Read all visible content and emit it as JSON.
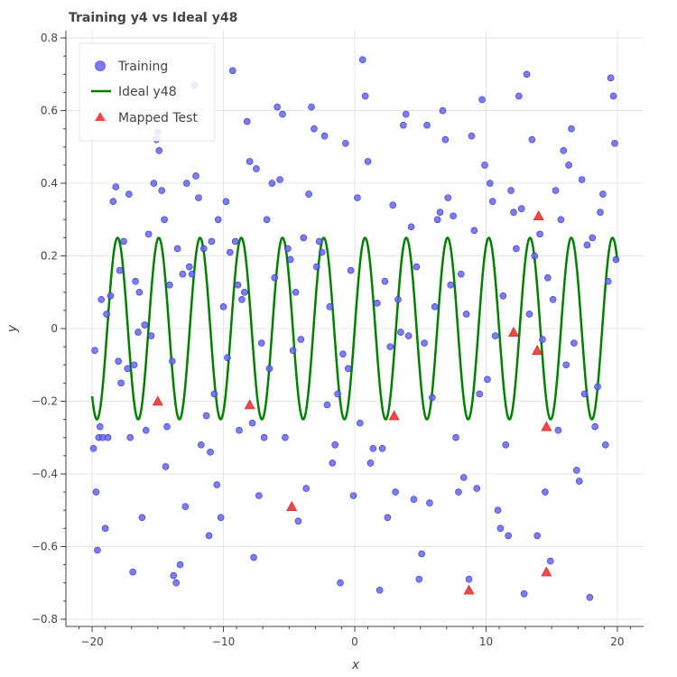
{
  "chart_data": {
    "type": "scatter",
    "title": "Training y4 vs Ideal y48",
    "xlabel": "x",
    "ylabel": "y",
    "xlim": [
      -22,
      22
    ],
    "ylim": [
      -0.82,
      0.82
    ],
    "x_ticks": [
      -20,
      -10,
      0,
      10,
      20
    ],
    "x_tick_labels": [
      "−20",
      "−10",
      "0",
      "10",
      "20"
    ],
    "y_ticks": [
      -0.8,
      -0.6,
      -0.4,
      -0.2,
      0,
      0.2,
      0.4,
      0.6,
      0.8
    ],
    "y_tick_labels": [
      "−0.8",
      "−0.6",
      "−0.4",
      "−0.2",
      "0",
      "0.2",
      "0.4",
      "0.6",
      "0.8"
    ],
    "grid": true,
    "legend_position": "top-left",
    "colors": {
      "training": "#6666ee",
      "ideal": "#008000",
      "test": "#ee3333"
    },
    "series": [
      {
        "name": "Training",
        "type": "scatter",
        "points": [
          [
            -19.9,
            -0.33
          ],
          [
            -19.8,
            -0.06
          ],
          [
            -19.7,
            -0.45
          ],
          [
            -19.6,
            -0.61
          ],
          [
            -19.5,
            -0.3
          ],
          [
            -19.4,
            -0.27
          ],
          [
            -19.3,
            0.08
          ],
          [
            -19.2,
            -0.3
          ],
          [
            -19.0,
            -0.55
          ],
          [
            -18.9,
            0.04
          ],
          [
            -18.8,
            -0.3
          ],
          [
            -18.6,
            0.09
          ],
          [
            -18.4,
            0.35
          ],
          [
            -18.2,
            0.39
          ],
          [
            -18.0,
            -0.09
          ],
          [
            -17.9,
            0.16
          ],
          [
            -17.8,
            -0.15
          ],
          [
            -17.6,
            0.24
          ],
          [
            -17.3,
            -0.11
          ],
          [
            -17.2,
            0.37
          ],
          [
            -17.1,
            -0.3
          ],
          [
            -16.9,
            -0.67
          ],
          [
            -16.8,
            -0.1
          ],
          [
            -16.7,
            0.13
          ],
          [
            -16.5,
            -0.01
          ],
          [
            -16.4,
            0.1
          ],
          [
            -16.2,
            -0.52
          ],
          [
            -16.0,
            0.01
          ],
          [
            -15.9,
            -0.28
          ],
          [
            -15.7,
            0.26
          ],
          [
            -15.5,
            -0.02
          ],
          [
            -15.3,
            0.4
          ],
          [
            -15.1,
            0.52
          ],
          [
            -15.0,
            0.54
          ],
          [
            -14.9,
            0.49
          ],
          [
            -14.7,
            0.38
          ],
          [
            -14.5,
            0.3
          ],
          [
            -14.4,
            -0.38
          ],
          [
            -14.3,
            -0.27
          ],
          [
            -14.1,
            0.12
          ],
          [
            -13.9,
            -0.09
          ],
          [
            -13.8,
            -0.68
          ],
          [
            -13.6,
            -0.7
          ],
          [
            -13.5,
            0.22
          ],
          [
            -13.3,
            -0.65
          ],
          [
            -13.1,
            0.15
          ],
          [
            -12.9,
            -0.49
          ],
          [
            -12.8,
            0.4
          ],
          [
            -12.6,
            0.17
          ],
          [
            -12.4,
            0.15
          ],
          [
            -12.2,
            0.67
          ],
          [
            -12.1,
            0.42
          ],
          [
            -11.9,
            0.36
          ],
          [
            -11.7,
            -0.32
          ],
          [
            -11.5,
            0.22
          ],
          [
            -11.3,
            -0.24
          ],
          [
            -11.1,
            -0.57
          ],
          [
            -11.0,
            -0.34
          ],
          [
            -10.9,
            0.24
          ],
          [
            -10.7,
            -0.18
          ],
          [
            -10.5,
            -0.43
          ],
          [
            -10.4,
            0.3
          ],
          [
            -10.2,
            -0.52
          ],
          [
            -10.0,
            0.06
          ],
          [
            -9.8,
            0.35
          ],
          [
            -9.7,
            -0.08
          ],
          [
            -9.5,
            0.21
          ],
          [
            -9.3,
            0.71
          ],
          [
            -9.1,
            0.24
          ],
          [
            -8.9,
            0.12
          ],
          [
            -8.8,
            -0.28
          ],
          [
            -8.6,
            0.08
          ],
          [
            -8.4,
            0.1
          ],
          [
            -8.2,
            0.57
          ],
          [
            -8.0,
            0.46
          ],
          [
            -7.8,
            -0.26
          ],
          [
            -7.7,
            -0.63
          ],
          [
            -7.5,
            0.44
          ],
          [
            -7.3,
            -0.46
          ],
          [
            -7.1,
            -0.04
          ],
          [
            -6.9,
            -0.3
          ],
          [
            -6.7,
            0.3
          ],
          [
            -6.5,
            -0.11
          ],
          [
            -6.3,
            0.4
          ],
          [
            -6.1,
            0.14
          ],
          [
            -5.9,
            0.61
          ],
          [
            -5.7,
            0.41
          ],
          [
            -5.5,
            0.59
          ],
          [
            -5.3,
            -0.3
          ],
          [
            -5.1,
            0.22
          ],
          [
            -4.9,
            0.19
          ],
          [
            -4.7,
            -0.06
          ],
          [
            -4.5,
            0.1
          ],
          [
            -4.3,
            -0.53
          ],
          [
            -4.1,
            -0.03
          ],
          [
            -3.9,
            0.25
          ],
          [
            -3.7,
            -0.44
          ],
          [
            -3.5,
            0.37
          ],
          [
            -3.3,
            0.61
          ],
          [
            -3.1,
            0.55
          ],
          [
            -2.9,
            0.17
          ],
          [
            -2.7,
            0.24
          ],
          [
            -2.5,
            0.21
          ],
          [
            -2.3,
            0.53
          ],
          [
            -2.1,
            -0.21
          ],
          [
            -1.9,
            0.06
          ],
          [
            -1.7,
            -0.37
          ],
          [
            -1.5,
            -0.32
          ],
          [
            -1.3,
            -0.18
          ],
          [
            -1.1,
            -0.7
          ],
          [
            -0.9,
            -0.07
          ],
          [
            -0.7,
            0.51
          ],
          [
            -0.5,
            -0.11
          ],
          [
            -0.3,
            0.16
          ],
          [
            -0.1,
            -0.46
          ],
          [
            0.2,
            0.36
          ],
          [
            0.4,
            -0.26
          ],
          [
            0.6,
            0.74
          ],
          [
            0.8,
            0.64
          ],
          [
            1.0,
            0.46
          ],
          [
            1.2,
            -0.37
          ],
          [
            1.4,
            -0.33
          ],
          [
            1.7,
            0.07
          ],
          [
            1.9,
            -0.72
          ],
          [
            2.1,
            -0.33
          ],
          [
            2.3,
            0.13
          ],
          [
            2.5,
            -0.52
          ],
          [
            2.7,
            -0.05
          ],
          [
            2.9,
            0.34
          ],
          [
            3.1,
            -0.45
          ],
          [
            3.3,
            0.08
          ],
          [
            3.5,
            -0.01
          ],
          [
            3.7,
            0.56
          ],
          [
            3.9,
            0.59
          ],
          [
            4.1,
            -0.02
          ],
          [
            4.3,
            0.28
          ],
          [
            4.5,
            -0.47
          ],
          [
            4.7,
            0.17
          ],
          [
            4.9,
            -0.69
          ],
          [
            5.1,
            -0.62
          ],
          [
            5.3,
            -0.04
          ],
          [
            5.5,
            0.56
          ],
          [
            5.7,
            -0.48
          ],
          [
            5.9,
            -0.19
          ],
          [
            6.1,
            0.06
          ],
          [
            6.3,
            0.3
          ],
          [
            6.5,
            0.32
          ],
          [
            6.7,
            0.6
          ],
          [
            6.9,
            0.52
          ],
          [
            7.1,
            0.36
          ],
          [
            7.3,
            0.12
          ],
          [
            7.5,
            0.31
          ],
          [
            7.7,
            -0.3
          ],
          [
            7.9,
            -0.45
          ],
          [
            8.1,
            0.15
          ],
          [
            8.3,
            -0.41
          ],
          [
            8.5,
            0.04
          ],
          [
            8.7,
            -0.69
          ],
          [
            8.9,
            0.53
          ],
          [
            9.1,
            0.27
          ],
          [
            9.3,
            -0.44
          ],
          [
            9.5,
            -0.18
          ],
          [
            9.7,
            0.63
          ],
          [
            9.9,
            0.45
          ],
          [
            10.1,
            -0.14
          ],
          [
            10.3,
            0.4
          ],
          [
            10.5,
            0.35
          ],
          [
            10.7,
            -0.02
          ],
          [
            10.9,
            -0.5
          ],
          [
            11.1,
            -0.55
          ],
          [
            11.3,
            0.09
          ],
          [
            11.5,
            -0.32
          ],
          [
            11.7,
            -0.57
          ],
          [
            11.9,
            0.38
          ],
          [
            12.1,
            0.32
          ],
          [
            12.3,
            0.22
          ],
          [
            12.5,
            0.64
          ],
          [
            12.7,
            0.33
          ],
          [
            12.9,
            -0.73
          ],
          [
            13.1,
            0.7
          ],
          [
            13.3,
            0.04
          ],
          [
            13.5,
            0.52
          ],
          [
            13.7,
            0.2
          ],
          [
            13.9,
            -0.57
          ],
          [
            14.1,
            0.26
          ],
          [
            14.3,
            -0.03
          ],
          [
            14.5,
            -0.45
          ],
          [
            14.7,
            0.14
          ],
          [
            14.9,
            -0.64
          ],
          [
            15.1,
            0.08
          ],
          [
            15.3,
            0.38
          ],
          [
            15.5,
            -0.28
          ],
          [
            15.7,
            0.3
          ],
          [
            15.9,
            0.49
          ],
          [
            16.1,
            -0.1
          ],
          [
            16.3,
            0.45
          ],
          [
            16.5,
            0.55
          ],
          [
            16.7,
            -0.04
          ],
          [
            16.9,
            -0.39
          ],
          [
            17.1,
            -0.42
          ],
          [
            17.3,
            0.41
          ],
          [
            17.5,
            -0.18
          ],
          [
            17.7,
            0.23
          ],
          [
            17.9,
            -0.74
          ],
          [
            18.1,
            0.25
          ],
          [
            18.3,
            -0.27
          ],
          [
            18.5,
            -0.16
          ],
          [
            18.7,
            0.32
          ],
          [
            18.9,
            0.37
          ],
          [
            19.1,
            -0.32
          ],
          [
            19.3,
            0.13
          ],
          [
            19.5,
            0.69
          ],
          [
            19.7,
            0.64
          ],
          [
            19.8,
            0.51
          ],
          [
            19.9,
            0.19
          ]
        ]
      },
      {
        "name": "Ideal y48",
        "type": "line",
        "function": "0.25*sin(2*x)",
        "x_range": [
          -20,
          20
        ]
      },
      {
        "name": "Mapped Test",
        "type": "scatter",
        "marker": "triangle",
        "points": [
          [
            -15.0,
            -0.2
          ],
          [
            -8.0,
            -0.21
          ],
          [
            -4.8,
            -0.49
          ],
          [
            3.0,
            -0.24
          ],
          [
            8.7,
            -0.72
          ],
          [
            12.1,
            -0.01
          ],
          [
            13.9,
            -0.06
          ],
          [
            14.0,
            0.31
          ],
          [
            14.6,
            -0.27
          ],
          [
            14.6,
            -0.67
          ]
        ]
      }
    ]
  }
}
